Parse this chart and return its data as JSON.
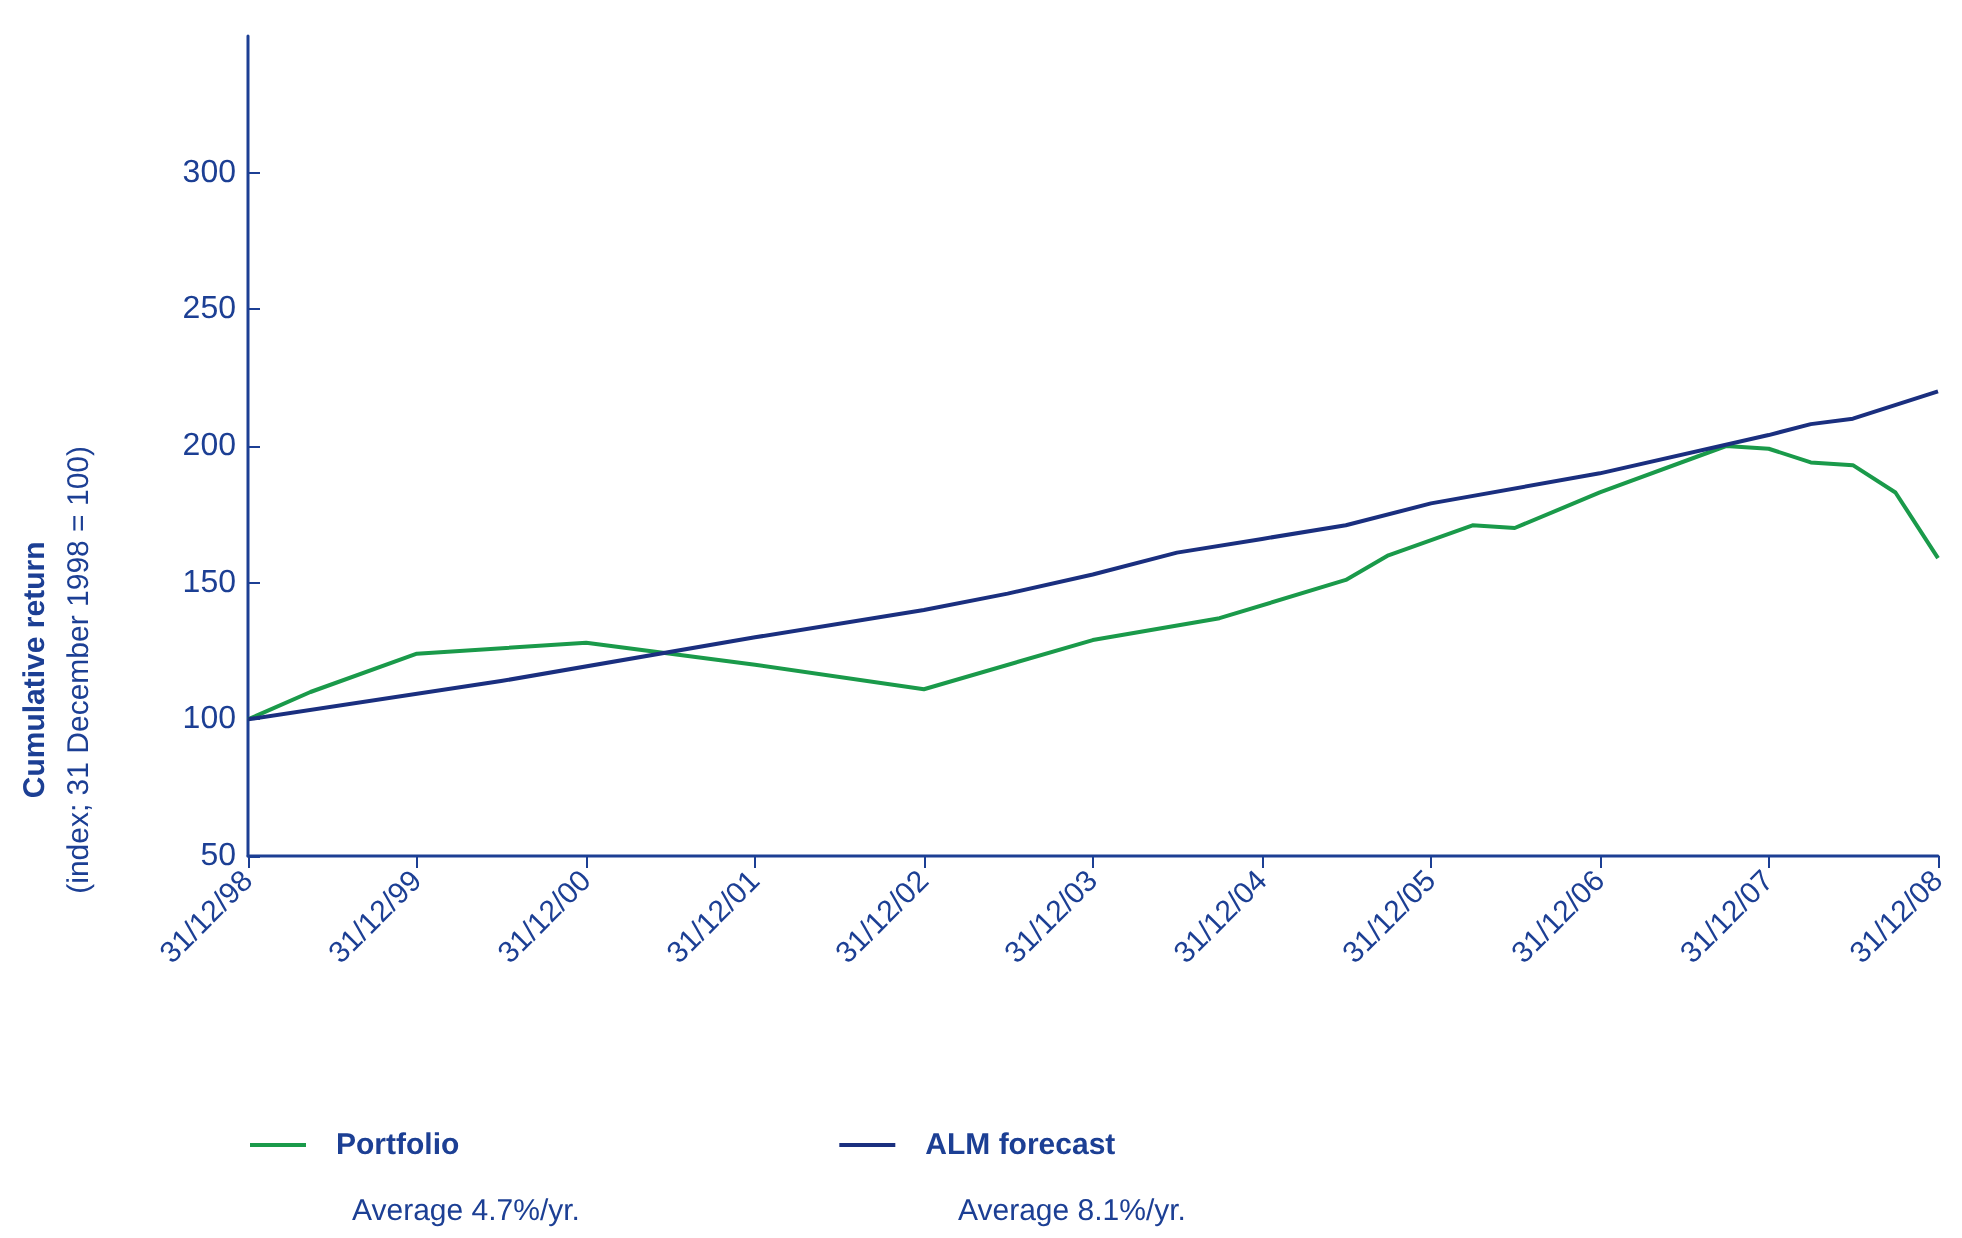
{
  "chart_data": {
    "type": "line",
    "ylabel": "Cumulative return\n(index; 31 December 1998 = 100)",
    "xlim": [
      "1998-12-31",
      "2008-12-31"
    ],
    "xticks": [
      {
        "value": "1998-12-31",
        "label": "31/12/98"
      },
      {
        "value": "1999-12-31",
        "label": "31/12/99"
      },
      {
        "value": "2000-12-31",
        "label": "31/12/00"
      },
      {
        "value": "2001-12-31",
        "label": "31/12/01"
      },
      {
        "value": "2002-12-31",
        "label": "31/12/02"
      },
      {
        "value": "2003-12-31",
        "label": "31/12/03"
      },
      {
        "value": "2004-12-31",
        "label": "31/12/04"
      },
      {
        "value": "2005-12-31",
        "label": "31/12/05"
      },
      {
        "value": "2006-12-31",
        "label": "31/12/06"
      },
      {
        "value": "2007-12-31",
        "label": "31/12/07"
      },
      {
        "value": "2008-12-31",
        "label": "31/12/08"
      }
    ],
    "ylim": [
      50,
      350
    ],
    "yticks": [
      50,
      100,
      150,
      200,
      250,
      300
    ],
    "grid": false,
    "legend": "bottom left",
    "marker": "none",
    "line_style": "solid",
    "series": [
      {
        "name": "Portfolio",
        "color": "#1a9a4a",
        "x": [
          "1998-12-31",
          "1999-05-15",
          "1999-12-31",
          "2000-12-31",
          "2001-12-31",
          "2002-12-31",
          "2003-12-31",
          "2004-09-30",
          "2005-06-30",
          "2005-09-30",
          "2006-03-31",
          "2006-06-30",
          "2006-12-31",
          "2007-09-30",
          "2007-12-31",
          "2008-03-31",
          "2008-06-30",
          "2008-09-30",
          "2008-12-31"
        ],
        "values": [
          100,
          110,
          124,
          128,
          120,
          111,
          129,
          137,
          151,
          160,
          171,
          170,
          183,
          200,
          199,
          194,
          193,
          183,
          159
        ]
      },
      {
        "name": "ALM forecast",
        "color": "#1a2f7f",
        "x": [
          "1998-12-31",
          "2000-06-30",
          "2001-12-31",
          "2002-12-31",
          "2003-06-30",
          "2003-12-31",
          "2004-06-30",
          "2004-12-31",
          "2005-06-30",
          "2005-12-31",
          "2006-12-31",
          "2007-12-31",
          "2008-03-31",
          "2008-06-30",
          "2008-12-31"
        ],
        "values": [
          100,
          114,
          130,
          140,
          146,
          153,
          161,
          166,
          171,
          179,
          190,
          204,
          208,
          210,
          220
        ]
      }
    ],
    "annotations": [
      "Average 4.7%/yr.",
      "Average 8.1%/yr."
    ]
  }
}
